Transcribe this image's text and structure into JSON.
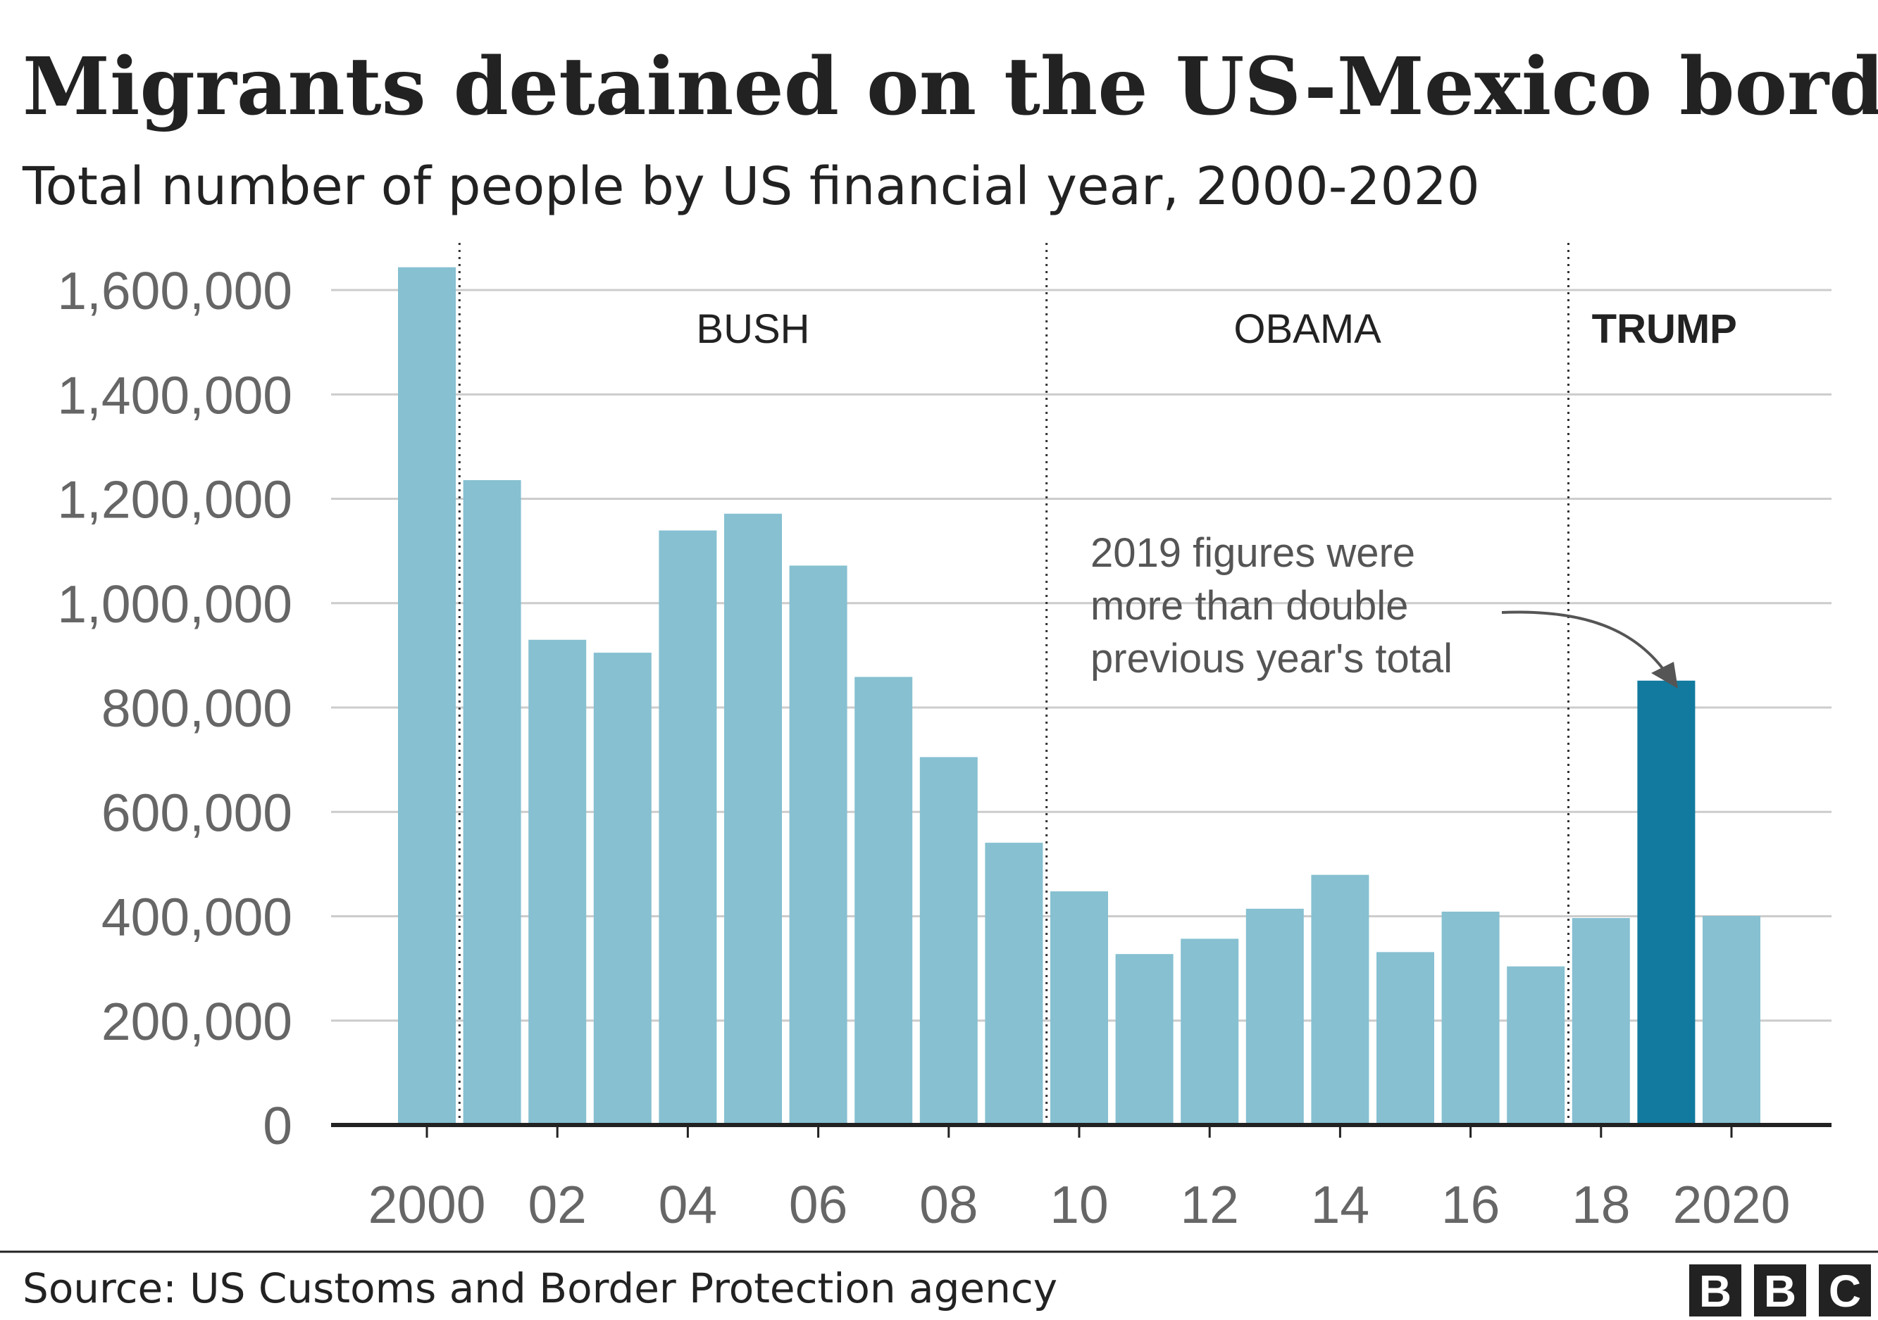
{
  "header": {
    "title": "Migrants detained on the US-Mexico border",
    "subtitle": "Total number of people by US financial year, 2000-2020"
  },
  "eras": [
    {
      "label": "BUSH",
      "bold": false
    },
    {
      "label": "OBAMA",
      "bold": false
    },
    {
      "label": "TRUMP",
      "bold": true
    }
  ],
  "annotation": {
    "lines": [
      "2019 figures were",
      "more than double",
      "previous year's total"
    ]
  },
  "footer": {
    "source": "Source: US Customs and Border Protection agency",
    "logo_letters": [
      "B",
      "B",
      "C"
    ]
  },
  "colors": {
    "bar": "#86c0d1",
    "highlight": "#127a9e",
    "grid": "#cccccc",
    "axis": "#222222"
  },
  "chart_data": {
    "type": "bar",
    "categories": [
      "2000",
      "2001",
      "2002",
      "2003",
      "2004",
      "2005",
      "2006",
      "2007",
      "2008",
      "2009",
      "2010",
      "2011",
      "2012",
      "2013",
      "2014",
      "2015",
      "2016",
      "2017",
      "2018",
      "2019",
      "2020"
    ],
    "values": [
      1643679,
      1235718,
      929809,
      905065,
      1139282,
      1171396,
      1071972,
      858638,
      705005,
      540865,
      447731,
      327577,
      356873,
      414397,
      479371,
      331333,
      408870,
      303916,
      396579,
      851508,
      400651
    ],
    "highlight_index": 19,
    "y_ticks": [
      0,
      200000,
      400000,
      600000,
      800000,
      1000000,
      1200000,
      1400000,
      1600000
    ],
    "y_tick_labels": [
      "0",
      "200,000",
      "400,000",
      "600,000",
      "800,000",
      "1,000,000",
      "1,200,000",
      "1,400,000",
      "1,600,000"
    ],
    "x_tick_labels": [
      "2000",
      "02",
      "04",
      "06",
      "08",
      "10",
      "12",
      "14",
      "16",
      "18",
      "2020"
    ],
    "ylim": [
      0,
      1600000
    ],
    "grid": true,
    "era_dividers": [
      2000.5,
      2009.5,
      2017.5
    ],
    "title": "Migrants detained on the US-Mexico border",
    "subtitle": "Total number of people by US financial year, 2000-2020",
    "xlabel": "",
    "ylabel": ""
  }
}
